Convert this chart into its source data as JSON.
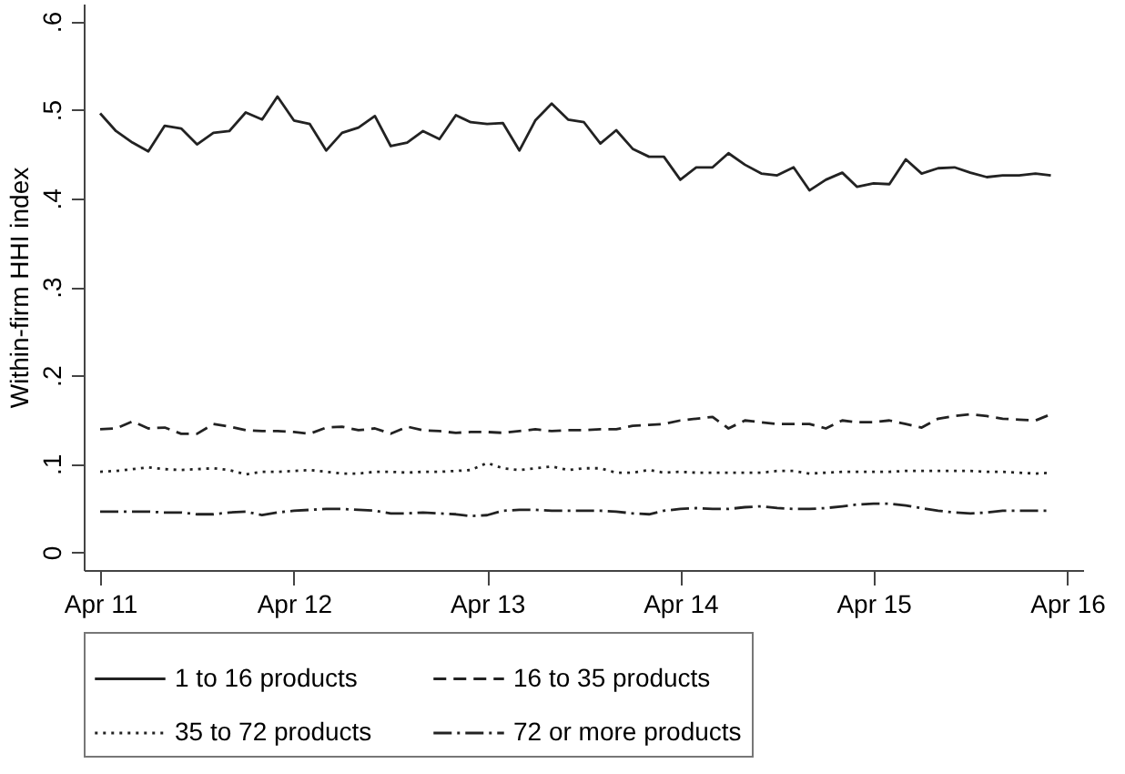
{
  "chart_data": {
    "type": "line",
    "ylabel": "Within-firm HHI index",
    "x": [
      "2011-04",
      "2011-05",
      "2011-06",
      "2011-07",
      "2011-08",
      "2011-09",
      "2011-10",
      "2011-11",
      "2011-12",
      "2012-01",
      "2012-02",
      "2012-03",
      "2012-04",
      "2012-05",
      "2012-06",
      "2012-07",
      "2012-08",
      "2012-09",
      "2012-10",
      "2012-11",
      "2012-12",
      "2013-01",
      "2013-02",
      "2013-03",
      "2013-04",
      "2013-05",
      "2013-06",
      "2013-07",
      "2013-08",
      "2013-09",
      "2013-10",
      "2013-11",
      "2013-12",
      "2014-01",
      "2014-02",
      "2014-03",
      "2014-04",
      "2014-05",
      "2014-06",
      "2014-07",
      "2014-08",
      "2014-09",
      "2014-10",
      "2014-11",
      "2014-12",
      "2015-01",
      "2015-02",
      "2015-03",
      "2015-04",
      "2015-05",
      "2015-06",
      "2015-07",
      "2015-08",
      "2015-09",
      "2015-10",
      "2015-11",
      "2015-12",
      "2016-01",
      "2016-02",
      "2016-03"
    ],
    "series": [
      {
        "name": "1 to 16 products",
        "color": "#222222",
        "line_style": "solid",
        "values": [
          0.496,
          0.476,
          0.463,
          0.453,
          0.482,
          0.479,
          0.461,
          0.474,
          0.476,
          0.497,
          0.489,
          0.515,
          0.488,
          0.484,
          0.454,
          0.474,
          0.48,
          0.493,
          0.459,
          0.463,
          0.476,
          0.467,
          0.494,
          0.486,
          0.484,
          0.485,
          0.454,
          0.488,
          0.507,
          0.489,
          0.486,
          0.462,
          0.477,
          0.456,
          0.447,
          0.447,
          0.421,
          0.435,
          0.435,
          0.451,
          0.438,
          0.428,
          0.426,
          0.435,
          0.409,
          0.421,
          0.429,
          0.413,
          0.417,
          0.416,
          0.444,
          0.428,
          0.434,
          0.435,
          0.429,
          0.424,
          0.426,
          0.426,
          0.428,
          0.426
        ]
      },
      {
        "name": "16 to 35 products",
        "color": "#222222",
        "line_style": "dashed",
        "values": [
          0.139,
          0.14,
          0.148,
          0.14,
          0.141,
          0.134,
          0.134,
          0.145,
          0.142,
          0.138,
          0.137,
          0.137,
          0.136,
          0.134,
          0.141,
          0.142,
          0.138,
          0.14,
          0.134,
          0.142,
          0.138,
          0.137,
          0.135,
          0.136,
          0.136,
          0.135,
          0.137,
          0.139,
          0.137,
          0.138,
          0.138,
          0.139,
          0.139,
          0.143,
          0.144,
          0.145,
          0.149,
          0.151,
          0.153,
          0.14,
          0.149,
          0.147,
          0.145,
          0.145,
          0.145,
          0.14,
          0.149,
          0.147,
          0.147,
          0.149,
          0.145,
          0.141,
          0.151,
          0.154,
          0.156,
          0.154,
          0.151,
          0.15,
          0.149,
          0.156
        ]
      },
      {
        "name": "35 to 72 products",
        "color": "#222222",
        "line_style": "dotted",
        "values": [
          0.091,
          0.092,
          0.094,
          0.096,
          0.094,
          0.093,
          0.094,
          0.095,
          0.093,
          0.088,
          0.091,
          0.091,
          0.092,
          0.093,
          0.091,
          0.089,
          0.089,
          0.091,
          0.091,
          0.09,
          0.091,
          0.091,
          0.092,
          0.093,
          0.101,
          0.095,
          0.093,
          0.095,
          0.097,
          0.093,
          0.095,
          0.095,
          0.09,
          0.09,
          0.093,
          0.09,
          0.091,
          0.09,
          0.09,
          0.09,
          0.09,
          0.09,
          0.092,
          0.092,
          0.089,
          0.09,
          0.091,
          0.091,
          0.091,
          0.091,
          0.092,
          0.092,
          0.092,
          0.092,
          0.092,
          0.091,
          0.091,
          0.09,
          0.089,
          0.09
        ]
      },
      {
        "name": "72 or more products",
        "color": "#222222",
        "line_style": "dashdot",
        "values": [
          0.046,
          0.046,
          0.046,
          0.046,
          0.045,
          0.045,
          0.043,
          0.043,
          0.045,
          0.046,
          0.042,
          0.045,
          0.047,
          0.048,
          0.049,
          0.049,
          0.048,
          0.047,
          0.044,
          0.044,
          0.045,
          0.044,
          0.043,
          0.041,
          0.042,
          0.047,
          0.048,
          0.048,
          0.047,
          0.047,
          0.047,
          0.047,
          0.046,
          0.044,
          0.043,
          0.047,
          0.049,
          0.05,
          0.049,
          0.049,
          0.051,
          0.052,
          0.05,
          0.049,
          0.049,
          0.05,
          0.052,
          0.054,
          0.055,
          0.055,
          0.053,
          0.05,
          0.047,
          0.045,
          0.044,
          0.045,
          0.047,
          0.047,
          0.047,
          0.047
        ]
      }
    ],
    "xlim": [
      "2011-03",
      "2016-05"
    ],
    "xticks": [
      {
        "value": "2011-04",
        "label": "Apr 11"
      },
      {
        "value": "2012-04",
        "label": "Apr 12"
      },
      {
        "value": "2013-04",
        "label": "Apr 13"
      },
      {
        "value": "2014-04",
        "label": "Apr 14"
      },
      {
        "value": "2015-04",
        "label": "Apr 15"
      },
      {
        "value": "2016-04",
        "label": "Apr 16"
      }
    ],
    "ylim": [
      -0.02,
      0.62
    ],
    "yticks": [
      {
        "value": 0,
        "label": "0"
      },
      {
        "value": 0.1,
        "label": ".1"
      },
      {
        "value": 0.2,
        "label": ".2"
      },
      {
        "value": 0.3,
        "label": ".3"
      },
      {
        "value": 0.4,
        "label": ".4"
      },
      {
        "value": 0.5,
        "label": ".5"
      },
      {
        "value": 0.6,
        "label": ".6"
      }
    ],
    "grid": false,
    "legend": "bottom"
  }
}
